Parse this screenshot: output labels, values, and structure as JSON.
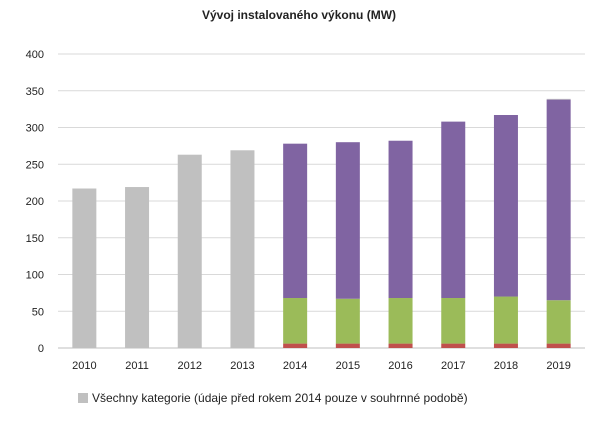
{
  "chart_data": {
    "type": "bar",
    "stacked": true,
    "title": "Vývoj instalovaného výkonu (MW)",
    "xlabel": "",
    "ylabel": "",
    "ylim": [
      0,
      400
    ],
    "yticks": [
      0,
      50,
      100,
      150,
      200,
      250,
      300,
      350,
      400
    ],
    "grid": true,
    "legend_position": "bottom-left",
    "categories": [
      "2010",
      "2011",
      "2012",
      "2013",
      "2014",
      "2015",
      "2016",
      "2017",
      "2018",
      "2019"
    ],
    "series": [
      {
        "name": "Všechny kategorie (údaje před rokem 2014 pouze v souhrnné podobě)",
        "color": "#c0c0c0",
        "values": [
          217,
          219,
          263,
          269,
          0,
          0,
          0,
          0,
          0,
          0
        ]
      },
      {
        "color": "#c0504d",
        "values": [
          0,
          0,
          0,
          0,
          6,
          6,
          6,
          6,
          6,
          6
        ]
      },
      {
        "color": "#9bbb59",
        "values": [
          0,
          0,
          0,
          0,
          62,
          61,
          62,
          62,
          64,
          59
        ]
      },
      {
        "color": "#8064a2",
        "values": [
          0,
          0,
          0,
          0,
          210,
          213,
          214,
          240,
          247,
          273
        ]
      },
      {
        "color": "#c8c8c8",
        "values": [
          0,
          0,
          0,
          0,
          0,
          0,
          0,
          0,
          0,
          1
        ]
      }
    ]
  }
}
